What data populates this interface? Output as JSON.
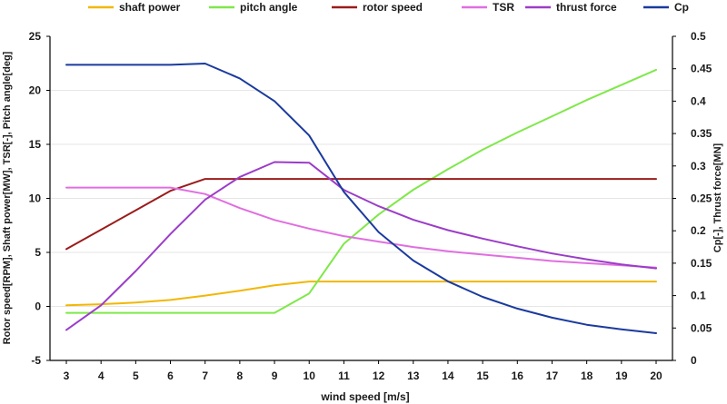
{
  "chart_data": {
    "type": "line",
    "xlabel": "wind speed [m/s]",
    "ylabel_left": "Rotor speed[RPM], Shaft power[MW], TSR[-], Pitch angle[deg]",
    "ylabel_right": "Cp[-], Thrust force[MN]",
    "xlim": [
      3,
      20
    ],
    "ylim_left": [
      -5,
      25
    ],
    "ylim_right": [
      0,
      0.5
    ],
    "x_ticks": [
      "3",
      "4",
      "5",
      "6",
      "7",
      "8",
      "9",
      "10",
      "11",
      "12",
      "13",
      "14",
      "15",
      "16",
      "17",
      "18",
      "19",
      "20"
    ],
    "y_ticks_left": [
      "-5",
      "0",
      "5",
      "10",
      "15",
      "20",
      "25"
    ],
    "y_ticks_right": [
      "0",
      "0.05",
      "0.1",
      "0.15",
      "0.2",
      "0.25",
      "0.3",
      "0.35",
      "0.4",
      "0.45",
      "0.5"
    ],
    "legend_position": "top",
    "series": [
      {
        "name": "shaft power",
        "axis": "left",
        "color": "#f2b705",
        "x": [
          3,
          4,
          5,
          6,
          7,
          8,
          9,
          10,
          11,
          12,
          13,
          14,
          15,
          16,
          17,
          18,
          19,
          20
        ],
        "values": [
          0.1,
          0.2,
          0.35,
          0.6,
          1.0,
          1.45,
          1.95,
          2.3,
          2.3,
          2.3,
          2.3,
          2.3,
          2.3,
          2.3,
          2.3,
          2.3,
          2.3,
          2.3
        ]
      },
      {
        "name": "pitch angle",
        "axis": "left",
        "color": "#7fe84a",
        "x": [
          3,
          4,
          5,
          6,
          7,
          8,
          9,
          10,
          11,
          12,
          13,
          14,
          15,
          16,
          17,
          18,
          19,
          20
        ],
        "values": [
          -0.6,
          -0.6,
          -0.6,
          -0.6,
          -0.6,
          -0.6,
          -0.6,
          1.2,
          5.8,
          8.5,
          10.8,
          12.7,
          14.5,
          16.1,
          17.6,
          19.1,
          20.5,
          21.9
        ]
      },
      {
        "name": "rotor speed",
        "axis": "left",
        "color": "#9b1b1b",
        "x": [
          3,
          4,
          5,
          6,
          7,
          8,
          9,
          10,
          11,
          12,
          13,
          14,
          15,
          16,
          17,
          18,
          19,
          20
        ],
        "values": [
          5.3,
          7.1,
          8.9,
          10.7,
          11.8,
          11.8,
          11.8,
          11.8,
          11.8,
          11.8,
          11.8,
          11.8,
          11.8,
          11.8,
          11.8,
          11.8,
          11.8,
          11.8
        ]
      },
      {
        "name": "TSR",
        "axis": "left",
        "color": "#e06ee0",
        "x": [
          3,
          4,
          5,
          6,
          7,
          8,
          9,
          10,
          11,
          12,
          13,
          14,
          15,
          16,
          17,
          18,
          19,
          20
        ],
        "values": [
          11.0,
          11.0,
          11.0,
          11.0,
          10.4,
          9.1,
          8.0,
          7.2,
          6.5,
          6.0,
          5.5,
          5.1,
          4.8,
          4.5,
          4.2,
          4.0,
          3.8,
          3.6
        ]
      },
      {
        "name": "thrust force",
        "axis": "right",
        "color": "#9b3dc8",
        "x": [
          3,
          4,
          5,
          6,
          7,
          8,
          9,
          10,
          11,
          12,
          13,
          14,
          15,
          16,
          17,
          18,
          19,
          20
        ],
        "values": [
          0.047,
          0.085,
          0.138,
          0.195,
          0.248,
          0.283,
          0.306,
          0.305,
          0.263,
          0.238,
          0.217,
          0.201,
          0.188,
          0.176,
          0.165,
          0.156,
          0.148,
          0.142
        ]
      },
      {
        "name": "Cp",
        "axis": "right",
        "color": "#1a3a9e",
        "x": [
          3,
          4,
          5,
          6,
          7,
          8,
          9,
          10,
          11,
          12,
          13,
          14,
          15,
          16,
          17,
          18,
          19,
          20
        ],
        "values": [
          0.456,
          0.456,
          0.456,
          0.456,
          0.458,
          0.435,
          0.4,
          0.347,
          0.26,
          0.198,
          0.154,
          0.122,
          0.098,
          0.08,
          0.066,
          0.055,
          0.048,
          0.042
        ]
      }
    ]
  }
}
